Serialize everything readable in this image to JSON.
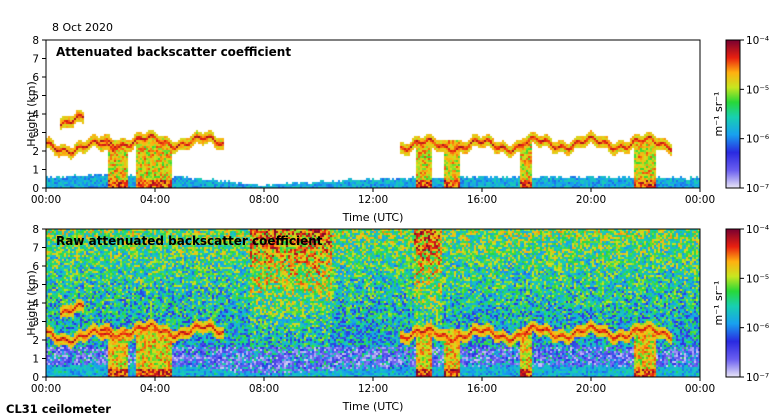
{
  "date": "8 Oct 2020",
  "instrument": "CL31 ceilometer",
  "colorbar": {
    "unit": "m⁻¹ sr⁻¹",
    "scale": "log",
    "ticks": [
      "10⁻⁴",
      "10⁻⁵",
      "10⁻⁶",
      "10⁻⁷"
    ],
    "range": [
      1e-07,
      0.0001
    ],
    "colors": [
      "#e9e6f6",
      "#3a32e0",
      "#18b8e8",
      "#1ed56a",
      "#d8e620",
      "#ff9a10",
      "#e02010",
      "#7a0030"
    ]
  },
  "chart_data": [
    {
      "type": "heatmap",
      "title": "Attenuated backscatter coefficient",
      "xlabel": "Time (UTC)",
      "ylabel": "Height (km)",
      "xlim": [
        0,
        24
      ],
      "ylim": [
        0,
        8
      ],
      "x_ticks": [
        "00:00",
        "04:00",
        "08:00",
        "12:00",
        "16:00",
        "20:00",
        "00:00"
      ],
      "y_ticks": [
        "0",
        "1",
        "2",
        "3",
        "4",
        "5",
        "6",
        "7",
        "8"
      ],
      "boundary_layer_top_km": [
        [
          0,
          0.6
        ],
        [
          2,
          0.7
        ],
        [
          5,
          0.6
        ],
        [
          8,
          0.15
        ],
        [
          10,
          0.35
        ],
        [
          12,
          0.5
        ],
        [
          16,
          0.6
        ],
        [
          20,
          0.6
        ],
        [
          24,
          0.55
        ]
      ],
      "aerosol_layers": [
        {
          "t_start": 0.5,
          "t_end": 1.4,
          "height_km": 3.6
        },
        {
          "t_start": 0.0,
          "t_end": 2.5,
          "height_km": 2.2
        },
        {
          "t_start": 2.0,
          "t_end": 6.5,
          "height_km": 2.5
        },
        {
          "t_start": 13.0,
          "t_end": 17.5,
          "height_km": 2.3
        },
        {
          "t_start": 17.5,
          "t_end": 23.0,
          "height_km": 2.4
        }
      ]
    },
    {
      "type": "heatmap",
      "title": "Raw attenuated backscatter coefficient",
      "xlabel": "Time (UTC)",
      "ylabel": "Height (km)",
      "xlim": [
        0,
        24
      ],
      "ylim": [
        0,
        8
      ],
      "x_ticks": [
        "00:00",
        "04:00",
        "08:00",
        "12:00",
        "16:00",
        "20:00",
        "00:00"
      ],
      "y_ticks": [
        "0",
        "1",
        "2",
        "3",
        "4",
        "5",
        "6",
        "7",
        "8"
      ],
      "noise_enhanced_periods": [
        [
          7.5,
          10.5
        ],
        [
          13.5,
          14.5
        ]
      ],
      "aerosol_layers": [
        {
          "t_start": 0.5,
          "t_end": 1.4,
          "height_km": 3.6
        },
        {
          "t_start": 0.0,
          "t_end": 2.5,
          "height_km": 2.2
        },
        {
          "t_start": 2.0,
          "t_end": 6.5,
          "height_km": 2.5
        },
        {
          "t_start": 13.0,
          "t_end": 17.5,
          "height_km": 2.3
        },
        {
          "t_start": 17.5,
          "t_end": 23.0,
          "height_km": 2.4
        }
      ]
    }
  ]
}
